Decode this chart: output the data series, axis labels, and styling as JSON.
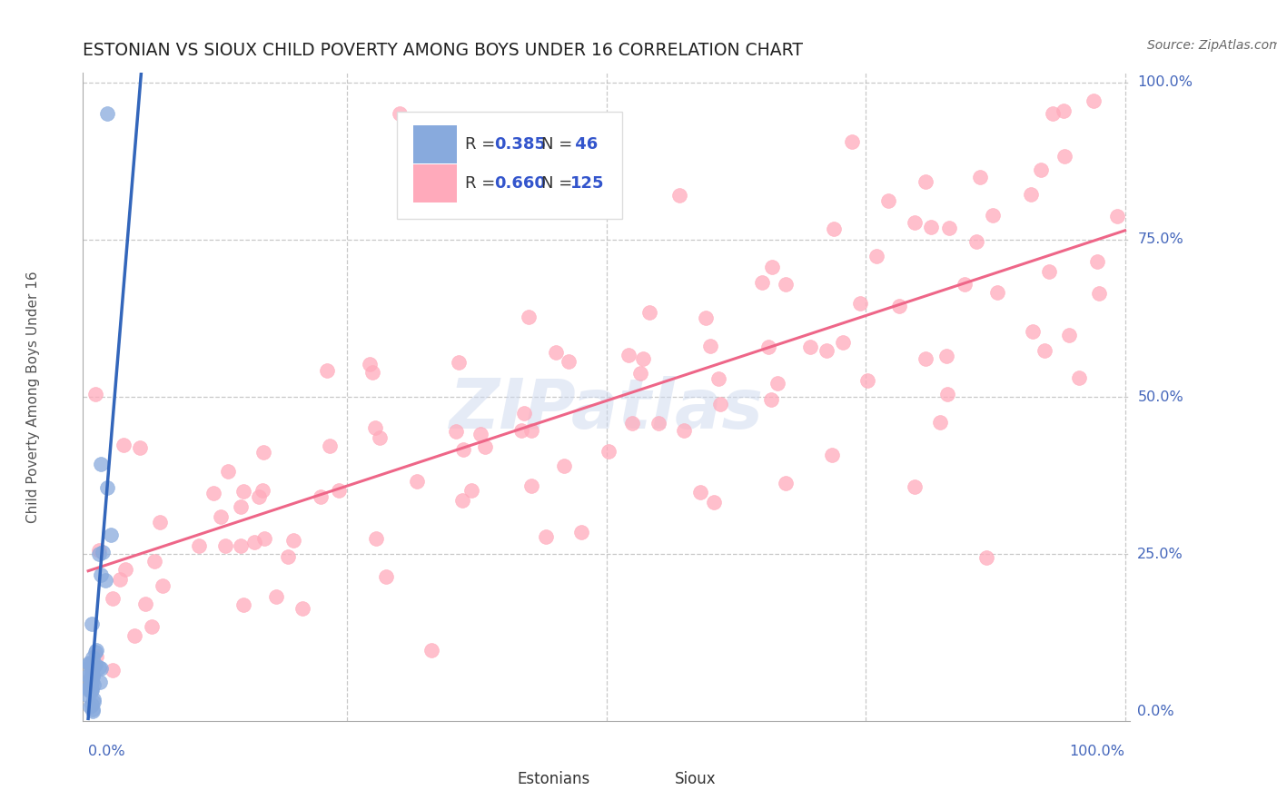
{
  "title": "ESTONIAN VS SIOUX CHILD POVERTY AMONG BOYS UNDER 16 CORRELATION CHART",
  "source": "Source: ZipAtlas.com",
  "ylabel": "Child Poverty Among Boys Under 16",
  "watermark": "ZIPatlas",
  "legend_r1": "R = 0.385",
  "legend_n1": "N =  46",
  "legend_r2": "R = 0.660",
  "legend_n2": "N = 125",
  "estonian_color": "#88aadd",
  "sioux_color": "#ffaabb",
  "estonian_trend_color": "#3366bb",
  "sioux_trend_color": "#ee6688",
  "background_color": "#ffffff",
  "grid_color": "#bbbbbb",
  "title_color": "#222222",
  "axis_label_color": "#4466bb",
  "R_value_color": "#3355cc",
  "legend_box_color": "#dddddd",
  "watermark_color": "#ccd8ee",
  "ylabel_color": "#555555",
  "source_color": "#666666",
  "spine_color": "#aaaaaa",
  "bottom_legend_color": "#333333"
}
